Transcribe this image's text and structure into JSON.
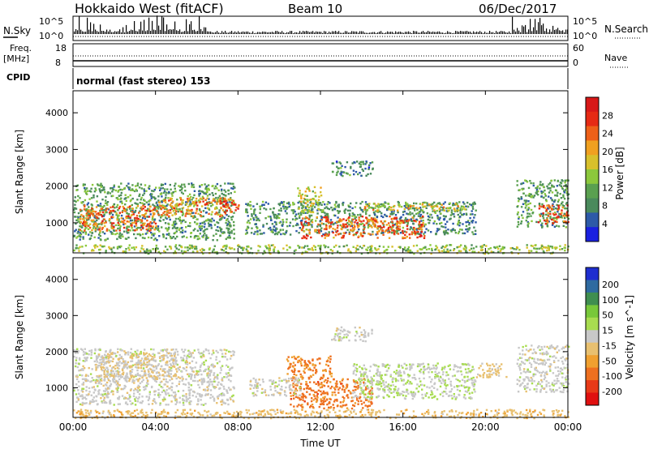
{
  "header": {
    "station": "Hokkaido West (fitACF)",
    "beam": "Beam 10",
    "date": "06/Dec/2017"
  },
  "info_panels": {
    "nsky_label": "N.Sky",
    "nsky_ticks": [
      "10^5",
      "10^0"
    ],
    "nsearch_label": "N.Search",
    "nsearch_ticks": [
      "10^5",
      "10^0"
    ],
    "freq_label": "Freq.",
    "freq_unit": "[MHz]",
    "freq_ticks": [
      "18",
      "8"
    ],
    "nave_label": "Nave",
    "nave_ticks": [
      "60",
      "0"
    ],
    "cpid_label": "CPID",
    "cpid_text": "normal (fast stereo) 153"
  },
  "chart_data": [
    {
      "type": "heatmap",
      "title": "",
      "xlabel": "",
      "ylabel": "Slant Range [km]",
      "x_ticks": [
        "00:00",
        "04:00",
        "08:00",
        "12:00",
        "16:00",
        "20:00",
        "00:00"
      ],
      "xlim": [
        0,
        24
      ],
      "y_ticks": [
        1000,
        2000,
        3000,
        4000
      ],
      "ylim": [
        180,
        4600
      ],
      "colorbar": {
        "label": "Power [dB]",
        "ticks": [
          "4",
          "8",
          "12",
          "16",
          "20",
          "24",
          "28"
        ],
        "colors": [
          "#1a20e0",
          "#2d5aa8",
          "#4a8a5c",
          "#5aa050",
          "#8cc83c",
          "#d8c02c",
          "#f0a020",
          "#ee6018",
          "#e62a14",
          "#d81818"
        ]
      },
      "echo_regions": [
        {
          "t_start": 0.0,
          "t_end": 7.8,
          "r_low": 550,
          "r_high": 2100,
          "value_db": 10
        },
        {
          "t_start": 0.3,
          "t_end": 4.0,
          "r_low": 800,
          "r_high": 1500,
          "value_db": 24
        },
        {
          "t_start": 4.0,
          "t_end": 7.5,
          "r_low": 1200,
          "r_high": 1700,
          "value_db": 22
        },
        {
          "t_start": 7.0,
          "t_end": 8.0,
          "r_low": 1300,
          "r_high": 1700,
          "value_db": 26
        },
        {
          "t_start": 8.3,
          "t_end": 19.5,
          "r_low": 700,
          "r_high": 1600,
          "value_db": 9
        },
        {
          "t_start": 11.0,
          "t_end": 17.0,
          "r_low": 600,
          "r_high": 1200,
          "value_db": 24
        },
        {
          "t_start": 10.8,
          "t_end": 12.0,
          "r_low": 1300,
          "r_high": 2000,
          "value_db": 16
        },
        {
          "t_start": 12.5,
          "t_end": 14.5,
          "r_low": 2300,
          "r_high": 2700,
          "value_db": 8
        },
        {
          "t_start": 14.0,
          "t_end": 19.0,
          "r_low": 1350,
          "r_high": 1550,
          "value_db": 18
        },
        {
          "t_start": 21.5,
          "t_end": 24.0,
          "r_low": 900,
          "r_high": 2200,
          "value_db": 10
        },
        {
          "t_start": 22.5,
          "t_end": 24.0,
          "r_low": 1000,
          "r_high": 1500,
          "value_db": 25
        },
        {
          "t_start": 0.0,
          "t_end": 24.0,
          "r_low": 180,
          "r_high": 420,
          "value_db": 14
        }
      ]
    },
    {
      "type": "heatmap",
      "title": "",
      "xlabel": "Time UT",
      "ylabel": "Slant Range [km]",
      "x_ticks": [
        "00:00",
        "04:00",
        "08:00",
        "12:00",
        "16:00",
        "20:00",
        "00:00"
      ],
      "xlim": [
        0,
        24
      ],
      "y_ticks": [
        1000,
        2000,
        3000,
        4000
      ],
      "ylim": [
        180,
        4600
      ],
      "colorbar": {
        "label": "Velocity [m s^-1]",
        "ticks": [
          "200",
          "100",
          "50",
          "15",
          "-15",
          "-50",
          "-100",
          "-200"
        ],
        "colors": [
          "#1e2ed0",
          "#2f6aa0",
          "#3f8e50",
          "#78c83a",
          "#a8dc50",
          "#c8c8c8",
          "#e8c070",
          "#f0a030",
          "#ee7020",
          "#e83a18",
          "#e01010"
        ]
      },
      "echo_regions": [
        {
          "t_start": 0.0,
          "t_end": 7.8,
          "r_low": 550,
          "r_high": 2100,
          "value_ms": 0
        },
        {
          "t_start": 1.0,
          "t_end": 5.0,
          "r_low": 1200,
          "r_high": 2000,
          "value_ms": -30
        },
        {
          "t_start": 10.3,
          "t_end": 12.5,
          "r_low": 1300,
          "r_high": 1900,
          "value_ms": -120
        },
        {
          "t_start": 10.5,
          "t_end": 14.5,
          "r_low": 450,
          "r_high": 1300,
          "value_ms": -130
        },
        {
          "t_start": 8.5,
          "t_end": 11.0,
          "r_low": 800,
          "r_high": 1300,
          "value_ms": 0
        },
        {
          "t_start": 13.5,
          "t_end": 19.5,
          "r_low": 700,
          "r_high": 1700,
          "value_ms": 20
        },
        {
          "t_start": 12.5,
          "t_end": 14.5,
          "r_low": 2300,
          "r_high": 2700,
          "value_ms": 0
        },
        {
          "t_start": 19.5,
          "t_end": 21.0,
          "r_low": 1300,
          "r_high": 1700,
          "value_ms": -40
        },
        {
          "t_start": 21.5,
          "t_end": 24.0,
          "r_low": 900,
          "r_high": 2200,
          "value_ms": 0
        },
        {
          "t_start": 0.0,
          "t_end": 24.0,
          "r_low": 180,
          "r_high": 420,
          "value_ms": -50
        }
      ]
    }
  ]
}
